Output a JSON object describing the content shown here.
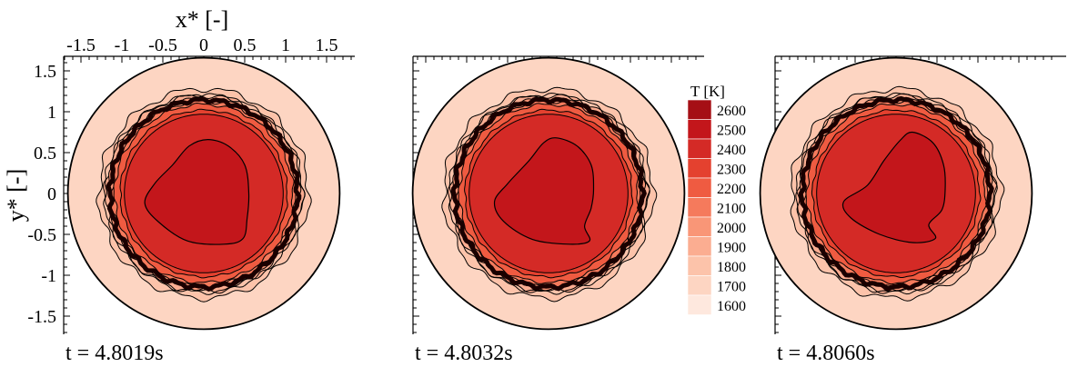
{
  "chart_data": {
    "type": "heatmap",
    "xlabel": "x* [-]",
    "ylabel": "y* [-]",
    "xlim": [
      -1.8,
      1.8
    ],
    "ylim": [
      -1.75,
      1.75
    ],
    "x_ticks": [
      "-1.5",
      "-1",
      "-0.5",
      "0",
      "0.5",
      "1",
      "1.5"
    ],
    "y_ticks": [
      "1.5",
      "1",
      "0.5",
      "0",
      "-0.5",
      "-1",
      "-1.5"
    ],
    "legend": {
      "title": "T [K]",
      "levels": [
        "2600",
        "2500",
        "2400",
        "2300",
        "2200",
        "2100",
        "2000",
        "1900",
        "1800",
        "1700",
        "1600"
      ],
      "colors": [
        "#a50f15",
        "#c3161b",
        "#d42a26",
        "#e4412f",
        "#ef5b41",
        "#f57a5c",
        "#f99677",
        "#fbad91",
        "#fcc3aa",
        "#fdd5c2",
        "#fee8de"
      ]
    },
    "panels": [
      {
        "time_label": "t = 4.8019s"
      },
      {
        "time_label": "t = 4.8032s"
      },
      {
        "time_label": "t = 4.8060s"
      }
    ]
  }
}
